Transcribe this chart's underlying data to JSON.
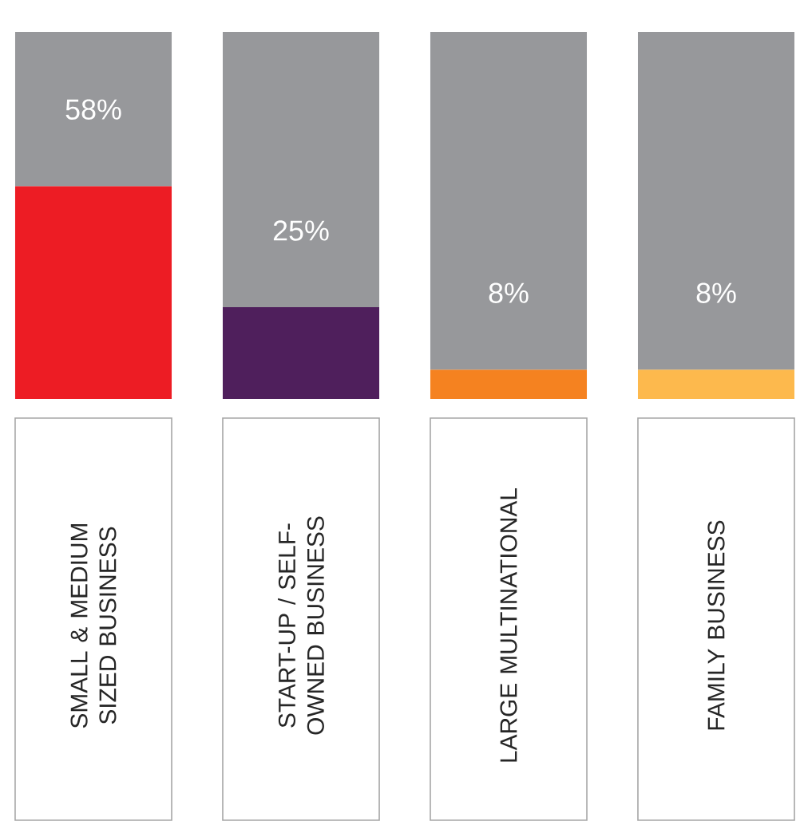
{
  "chart_data": {
    "type": "bar",
    "stacked": true,
    "tick_labels": false,
    "ylim": [
      0,
      100
    ],
    "categories": [
      "SMALL & MEDIUM SIZED BUSINESS",
      "START-UP / SELF-OWNED BUSINESS",
      "LARGE MULTINATIONAL",
      "FAMILY BUSINESS"
    ],
    "series": [
      {
        "colors": [
          "#ed1c24",
          "#4f1f5c",
          "#f58220",
          "#fdb94d"
        ],
        "values": [
          58,
          25,
          8,
          8
        ],
        "value_labels": [
          "58%",
          "25%",
          "8%",
          "8%"
        ]
      },
      {
        "color": "#97989b",
        "values": [
          42,
          75,
          92,
          92
        ]
      }
    ]
  }
}
